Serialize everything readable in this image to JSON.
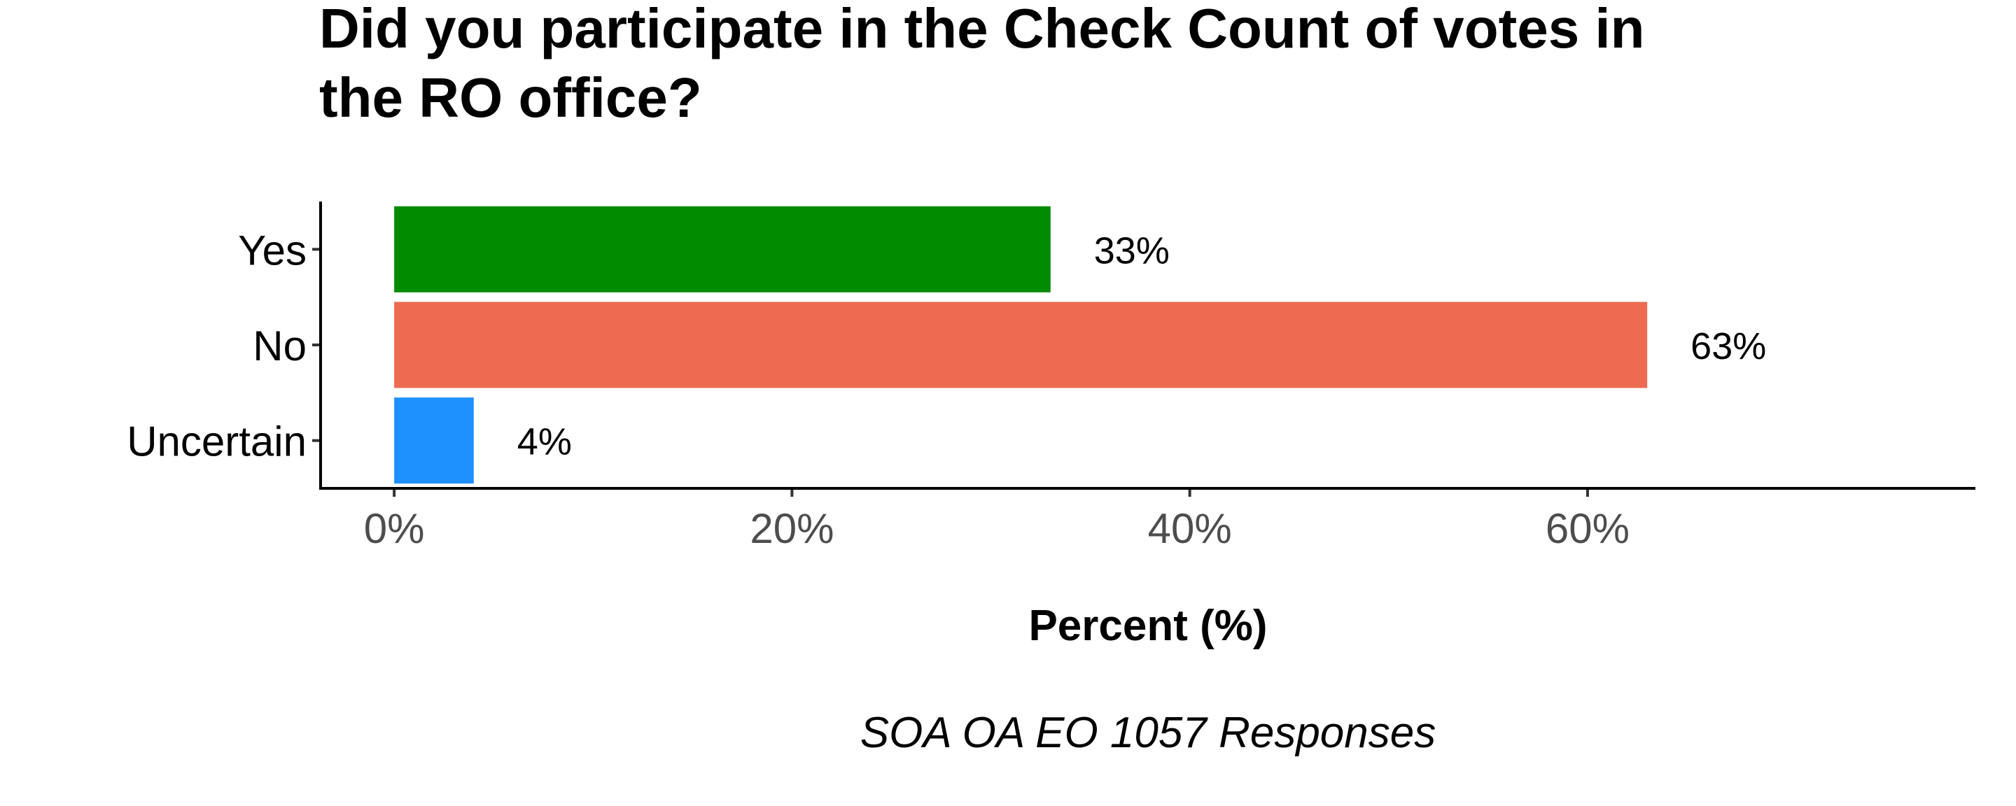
{
  "chart_data": {
    "type": "bar",
    "orientation": "horizontal",
    "title": "Did you participate in the Check Count of votes in the RO office?",
    "title_lines": [
      "Did you participate in the Check Count of votes in",
      "the RO office?"
    ],
    "categories": [
      "Yes",
      "No",
      "Uncertain"
    ],
    "values": [
      33,
      63,
      4
    ],
    "data_labels": [
      "33%",
      "63%",
      "4%"
    ],
    "colors": [
      "#008B00",
      "#EE6A50",
      "#1E90FF"
    ],
    "xlabel": "Percent (%)",
    "ylabel": "",
    "xlim": [
      -3.7,
      79.5
    ],
    "xticks": [
      0,
      20,
      40,
      60
    ],
    "xtick_labels": [
      "0%",
      "20%",
      "40%",
      "60%"
    ],
    "caption": "SOA OA EO 1057 Responses",
    "grid": false,
    "legend": "none"
  }
}
